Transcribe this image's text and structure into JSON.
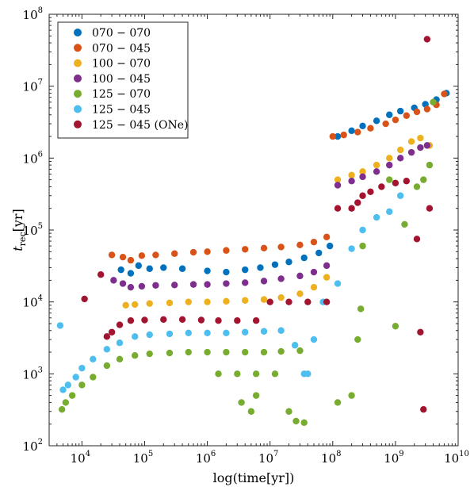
{
  "chart_data": {
    "type": "scatter",
    "xlabel": "log(time[yr])",
    "ylabel_main": "t",
    "ylabel_sub": "rec",
    "ylabel_unit": "[yr]",
    "x_scale": "log",
    "y_scale": "log",
    "xlim": [
      3000,
      10000000000
    ],
    "ylim": [
      100,
      100000000
    ],
    "x_ticks": [
      {
        "value": 10000,
        "base": "10",
        "exp": "4"
      },
      {
        "value": 100000,
        "base": "10",
        "exp": "5"
      },
      {
        "value": 1000000,
        "base": "10",
        "exp": "6"
      },
      {
        "value": 10000000,
        "base": "10",
        "exp": "7"
      },
      {
        "value": 100000000,
        "base": "10",
        "exp": "8"
      },
      {
        "value": 1000000000,
        "base": "10",
        "exp": "9"
      },
      {
        "value": 10000000000,
        "base": "10",
        "exp": "10"
      }
    ],
    "y_ticks": [
      {
        "value": 100,
        "base": "10",
        "exp": "2"
      },
      {
        "value": 1000,
        "base": "10",
        "exp": "3"
      },
      {
        "value": 10000,
        "base": "10",
        "exp": "4"
      },
      {
        "value": 100000,
        "base": "10",
        "exp": "5"
      },
      {
        "value": 1000000,
        "base": "10",
        "exp": "6"
      },
      {
        "value": 10000000,
        "base": "10",
        "exp": "7"
      },
      {
        "value": 100000000,
        "base": "10",
        "exp": "8"
      }
    ],
    "grid": false,
    "legend_position": "top-left",
    "series": [
      {
        "name": "070 − 070",
        "color": "#0072bd",
        "points": [
          [
            42000.0,
            28000.0
          ],
          [
            60000.0,
            25000.0
          ],
          [
            80000.0,
            32000.0
          ],
          [
            120000.0,
            29000.0
          ],
          [
            200000.0,
            30000.0
          ],
          [
            400000.0,
            29000.0
          ],
          [
            1000000.0,
            27000.0
          ],
          [
            2000000.0,
            26000.0
          ],
          [
            4000000.0,
            28000.0
          ],
          [
            7000000.0,
            30000.0
          ],
          [
            12000000.0,
            33000.0
          ],
          [
            20000000.0,
            36000.0
          ],
          [
            35000000.0,
            41000.0
          ],
          [
            60000000.0,
            48000.0
          ],
          [
            90000000.0,
            60000.0
          ],
          [
            120000000.0,
            2000000.0
          ],
          [
            200000000.0,
            2400000.0
          ],
          [
            300000000.0,
            2800000.0
          ],
          [
            500000000.0,
            3300000.0
          ],
          [
            800000000.0,
            4000000.0
          ],
          [
            1200000000.0,
            4500000.0
          ],
          [
            2000000000.0,
            5000000.0
          ],
          [
            3000000000.0,
            5600000.0
          ],
          [
            4500000000.0,
            6500000.0
          ],
          [
            6500000000.0,
            8000000.0
          ]
        ]
      },
      {
        "name": "070 − 045",
        "color": "#d95319",
        "points": [
          [
            30000.0,
            45000.0
          ],
          [
            45000.0,
            42000.0
          ],
          [
            60000.0,
            38000.0
          ],
          [
            90000.0,
            44000.0
          ],
          [
            150000.0,
            45000.0
          ],
          [
            300000.0,
            47000.0
          ],
          [
            600000.0,
            49000.0
          ],
          [
            1000000.0,
            50000.0
          ],
          [
            2000000.0,
            52000.0
          ],
          [
            4000000.0,
            54000.0
          ],
          [
            8000000.0,
            56000.0
          ],
          [
            15000000.0,
            58000.0
          ],
          [
            30000000.0,
            62000.0
          ],
          [
            50000000.0,
            68000.0
          ],
          [
            80000000.0,
            80000.0
          ],
          [
            100000000.0,
            2000000.0
          ],
          [
            150000000.0,
            2100000.0
          ],
          [
            250000000.0,
            2300000.0
          ],
          [
            400000000.0,
            2600000.0
          ],
          [
            700000000.0,
            3000000.0
          ],
          [
            1000000000.0,
            3400000.0
          ],
          [
            1500000000.0,
            3900000.0
          ],
          [
            2200000000.0,
            4400000.0
          ],
          [
            3200000000.0,
            4800000.0
          ],
          [
            4500000000.0,
            5500000.0
          ],
          [
            6000000000.0,
            7800000.0
          ]
        ]
      },
      {
        "name": "100 − 070",
        "color": "#edb120",
        "points": [
          [
            50000.0,
            9000.0
          ],
          [
            70000.0,
            9200.0
          ],
          [
            120000.0,
            9500.0
          ],
          [
            250000.0,
            9700.0
          ],
          [
            500000.0,
            10000.0
          ],
          [
            1000000.0,
            10000.0
          ],
          [
            2000000.0,
            10200.0
          ],
          [
            4000000.0,
            10500.0
          ],
          [
            8000000.0,
            10800.0
          ],
          [
            15000000.0,
            11500.0
          ],
          [
            30000000.0,
            13000.0
          ],
          [
            50000000.0,
            16000.0
          ],
          [
            80000000.0,
            22000.0
          ],
          [
            120000000.0,
            500000.0
          ],
          [
            200000000.0,
            580000.0
          ],
          [
            300000000.0,
            650000.0
          ],
          [
            500000000.0,
            800000.0
          ],
          [
            800000000.0,
            1000000.0
          ],
          [
            1200000000.0,
            1300000.0
          ],
          [
            1800000000.0,
            1700000.0
          ],
          [
            2500000000.0,
            1900000.0
          ],
          [
            3500000000.0,
            1500000.0
          ]
        ]
      },
      {
        "name": "100 − 045",
        "color": "#7e2f8e",
        "points": [
          [
            32000.0,
            20000.0
          ],
          [
            45000.0,
            18000.0
          ],
          [
            60000.0,
            16000.0
          ],
          [
            90000.0,
            16500.0
          ],
          [
            150000.0,
            17000.0
          ],
          [
            300000.0,
            17200.0
          ],
          [
            600000.0,
            17500.0
          ],
          [
            1000000.0,
            17500.0
          ],
          [
            2000000.0,
            18000.0
          ],
          [
            4000000.0,
            18500.0
          ],
          [
            8000000.0,
            19500.0
          ],
          [
            15000000.0,
            21000.0
          ],
          [
            30000000.0,
            23000.0
          ],
          [
            50000000.0,
            26000.0
          ],
          [
            80000000.0,
            32000.0
          ],
          [
            120000000.0,
            420000.0
          ],
          [
            200000000.0,
            480000.0
          ],
          [
            300000000.0,
            550000.0
          ],
          [
            500000000.0,
            650000.0
          ],
          [
            800000000.0,
            800000.0
          ],
          [
            1200000000.0,
            1000000.0
          ],
          [
            1800000000.0,
            1200000.0
          ],
          [
            2500000000.0,
            1400000.0
          ],
          [
            3200000000.0,
            1500000.0
          ]
        ]
      },
      {
        "name": "125 − 070",
        "color": "#77ac30",
        "points": [
          [
            4800.0,
            320.0
          ],
          [
            5500.0,
            400.0
          ],
          [
            7000.0,
            500.0
          ],
          [
            10000.0,
            700.0
          ],
          [
            15000.0,
            900.0
          ],
          [
            25000.0,
            1300.0
          ],
          [
            40000.0,
            1600.0
          ],
          [
            70000.0,
            1800.0
          ],
          [
            120000.0,
            1900.0
          ],
          [
            250000.0,
            1950.0
          ],
          [
            500000.0,
            2000.0
          ],
          [
            1000000.0,
            2000.0
          ],
          [
            2000000.0,
            2000.0
          ],
          [
            4000000.0,
            2000.0
          ],
          [
            8000000.0,
            2000.0
          ],
          [
            15000000.0,
            2050.0
          ],
          [
            30000000.0,
            2100.0
          ],
          [
            1500000.0,
            1000.0
          ],
          [
            3000000.0,
            1000.0
          ],
          [
            6000000.0,
            1000.0
          ],
          [
            12000000.0,
            1000.0
          ],
          [
            3500000.0,
            400.0
          ],
          [
            5000000.0,
            300.0
          ],
          [
            6000000.0,
            500.0
          ],
          [
            20000000.0,
            300.0
          ],
          [
            26000000.0,
            220.0
          ],
          [
            35000000.0,
            210.0
          ],
          [
            120000000.0,
            400.0
          ],
          [
            200000000.0,
            500.0
          ],
          [
            250000000.0,
            3000.0
          ],
          [
            280000000.0,
            8000.0
          ],
          [
            300000000.0,
            60000.0
          ],
          [
            800000000.0,
            500000.0
          ],
          [
            1000000000.0,
            4600.0
          ],
          [
            1400000000.0,
            120000.0
          ],
          [
            2200000000.0,
            400000.0
          ],
          [
            2800000000.0,
            500000.0
          ],
          [
            3500000000.0,
            800000.0
          ],
          [
            4000000000.0,
            6000000.0
          ]
        ]
      },
      {
        "name": "125 − 045",
        "color": "#4dbeee",
        "points": [
          [
            4500.0,
            4700.0
          ],
          [
            5000.0,
            600.0
          ],
          [
            6000.0,
            700.0
          ],
          [
            8000.0,
            900.0
          ],
          [
            10000.0,
            1200.0
          ],
          [
            15000.0,
            1600.0
          ],
          [
            25000.0,
            2200.0
          ],
          [
            40000.0,
            2700.0
          ],
          [
            70000.0,
            3300.0
          ],
          [
            120000.0,
            3500.0
          ],
          [
            250000.0,
            3600.0
          ],
          [
            500000.0,
            3700.0
          ],
          [
            1000000.0,
            3700.0
          ],
          [
            2000000.0,
            3700.0
          ],
          [
            4000000.0,
            3800.0
          ],
          [
            8000000.0,
            3900.0
          ],
          [
            15000000.0,
            4000.0
          ],
          [
            25000000.0,
            2500.0
          ],
          [
            35000000.0,
            1000.0
          ],
          [
            40000000.0,
            1000.0
          ],
          [
            50000000.0,
            3000.0
          ],
          [
            70000000.0,
            10000.0
          ],
          [
            120000000.0,
            18000.0
          ],
          [
            200000000.0,
            55000.0
          ],
          [
            300000000.0,
            100000.0
          ],
          [
            500000000.0,
            150000.0
          ],
          [
            800000000.0,
            180000.0
          ],
          [
            1200000000.0,
            300000.0
          ]
        ]
      },
      {
        "name": "125 − 045 (ONe)",
        "color": "#a2142f",
        "points": [
          [
            11000.0,
            11000.0
          ],
          [
            20000.0,
            24000.0
          ],
          [
            25000.0,
            3300.0
          ],
          [
            30000.0,
            3800.0
          ],
          [
            40000.0,
            4800.0
          ],
          [
            60000.0,
            5500.0
          ],
          [
            100000.0,
            5600.0
          ],
          [
            200000.0,
            5700.0
          ],
          [
            400000.0,
            5700.0
          ],
          [
            800000.0,
            5600.0
          ],
          [
            1500000.0,
            5500.0
          ],
          [
            3000000.0,
            5500.0
          ],
          [
            6000000.0,
            5500.0
          ],
          [
            10000000.0,
            10000.0
          ],
          [
            20000000.0,
            10000.0
          ],
          [
            40000000.0,
            10000.0
          ],
          [
            80000000.0,
            10000.0
          ],
          [
            120000000.0,
            200000.0
          ],
          [
            200000000.0,
            200000.0
          ],
          [
            250000000.0,
            240000.0
          ],
          [
            300000000.0,
            300000.0
          ],
          [
            400000000.0,
            340000.0
          ],
          [
            600000000.0,
            400000.0
          ],
          [
            1000000000.0,
            450000.0
          ],
          [
            1500000000.0,
            480000.0
          ],
          [
            2200000000.0,
            75000.0
          ],
          [
            2500000000.0,
            3800.0
          ],
          [
            2800000000.0,
            320.0
          ],
          [
            3200000000.0,
            45000000.0
          ],
          [
            3500000000.0,
            200000.0
          ]
        ]
      }
    ]
  }
}
